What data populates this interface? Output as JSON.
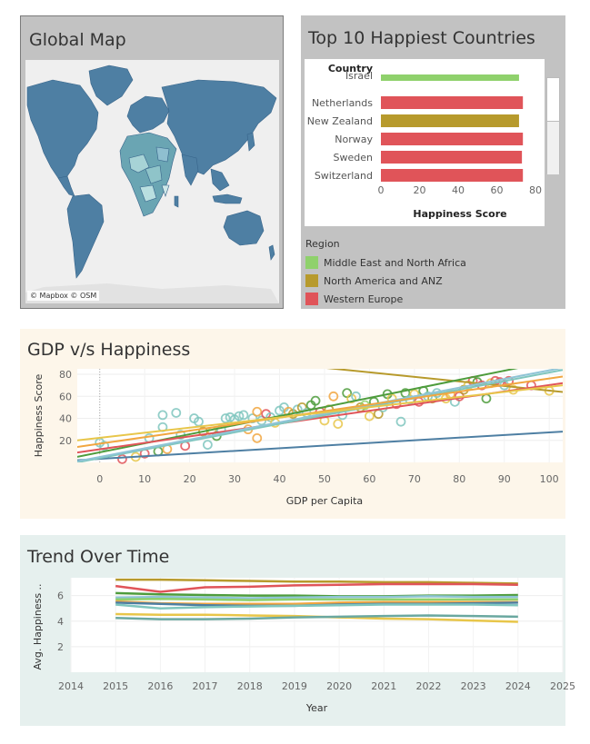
{
  "map": {
    "title": "Global Map",
    "attribution": "© Mapbox © OSM",
    "ocean_color": "#efefef",
    "land_color": "#4e7fa3"
  },
  "top10": {
    "title": "Top 10 Happiest Countries",
    "row_header": "Country",
    "xlabel": "Happiness Score",
    "legend_title": "Region",
    "legend": [
      {
        "label": "Middle East and North Africa",
        "color": "#8fd16c"
      },
      {
        "label": "North America and ANZ",
        "color": "#b79a2c"
      },
      {
        "label": "Western Europe",
        "color": "#e05459"
      }
    ]
  },
  "gdp": {
    "title": "GDP v/s Happiness"
  },
  "trend": {
    "title": "Trend Over Time"
  },
  "chart_data": [
    {
      "type": "bar",
      "title": "Top 10 Happiest Countries",
      "xlabel": "Happiness Score",
      "xlim": [
        0,
        80
      ],
      "xticks": [
        0,
        20,
        40,
        60,
        80
      ],
      "categories": [
        "Israel",
        "Netherlands",
        "New Zealand",
        "Norway",
        "Sweden",
        "Switzerland"
      ],
      "values": [
        71.5,
        73.5,
        71.5,
        73.5,
        73.0,
        73.5
      ],
      "colors": [
        "#8fd16c",
        "#e05459",
        "#b79a2c",
        "#e05459",
        "#e05459",
        "#e05459"
      ]
    },
    {
      "type": "scatter",
      "title": "GDP v/s Happiness",
      "xlabel": "GDP per Capita",
      "ylabel": "Happiness Score",
      "xlim": [
        -5,
        103
      ],
      "ylim": [
        0,
        85
      ],
      "xticks": [
        0,
        10,
        20,
        30,
        40,
        50,
        60,
        70,
        80,
        90,
        100
      ],
      "yticks": [
        20,
        40,
        60,
        80
      ],
      "points": [
        [
          0,
          18,
          "#7fc6be"
        ],
        [
          1,
          15,
          "#7fc6be"
        ],
        [
          5,
          3,
          "#e05459"
        ],
        [
          8,
          5,
          "#e8c64a"
        ],
        [
          10,
          8,
          "#e05459"
        ],
        [
          11,
          22,
          "#7fc6be"
        ],
        [
          13,
          10,
          "#4e9c3c"
        ],
        [
          14,
          43,
          "#7fc6be"
        ],
        [
          14,
          32,
          "#7fc6be"
        ],
        [
          15,
          12,
          "#f1a640"
        ],
        [
          17,
          45,
          "#7fc6be"
        ],
        [
          18,
          25,
          "#7fc6be"
        ],
        [
          19,
          15,
          "#e05459"
        ],
        [
          21,
          40,
          "#7fc6be"
        ],
        [
          22,
          37,
          "#7fc6be"
        ],
        [
          23,
          28,
          "#b79a2c"
        ],
        [
          24,
          16,
          "#7fc6be"
        ],
        [
          25,
          28,
          "#e8c64a"
        ],
        [
          26,
          24,
          "#4e9c3c"
        ],
        [
          27,
          30,
          "#7fc6be"
        ],
        [
          28,
          40,
          "#7fc6be"
        ],
        [
          29,
          41,
          "#7fc6be"
        ],
        [
          30,
          39,
          "#7fc6be"
        ],
        [
          31,
          42,
          "#7fc6be"
        ],
        [
          32,
          43,
          "#7fc6be"
        ],
        [
          33,
          30,
          "#f1a640"
        ],
        [
          34,
          40,
          "#7fc6be"
        ],
        [
          35,
          46,
          "#f1a640"
        ],
        [
          35,
          22,
          "#f1a640"
        ],
        [
          36,
          38,
          "#7fc6be"
        ],
        [
          37,
          44,
          "#e05459"
        ],
        [
          38,
          41,
          "#7fc6be"
        ],
        [
          39,
          36,
          "#e8c64a"
        ],
        [
          40,
          47,
          "#7fc6be"
        ],
        [
          41,
          50,
          "#7fc6be"
        ],
        [
          42,
          46,
          "#f1a640"
        ],
        [
          43,
          44,
          "#b79a2c"
        ],
        [
          44,
          48,
          "#7fc6be"
        ],
        [
          45,
          50,
          "#b79a2c"
        ],
        [
          46,
          45,
          "#7fc6be"
        ],
        [
          47,
          52,
          "#4e9c3c"
        ],
        [
          48,
          56,
          "#4e9c3c"
        ],
        [
          49,
          46,
          "#e05459"
        ],
        [
          50,
          38,
          "#e8c64a"
        ],
        [
          51,
          48,
          "#b79a2c"
        ],
        [
          52,
          60,
          "#f1a640"
        ],
        [
          53,
          35,
          "#e8c64a"
        ],
        [
          54,
          43,
          "#7fc6be"
        ],
        [
          55,
          63,
          "#4e9c3c"
        ],
        [
          56,
          58,
          "#e8c64a"
        ],
        [
          57,
          60,
          "#7fc6be"
        ],
        [
          58,
          50,
          "#b79a2c"
        ],
        [
          59,
          52,
          "#8fd16c"
        ],
        [
          60,
          42,
          "#e8c64a"
        ],
        [
          61,
          55,
          "#4e9c3c"
        ],
        [
          62,
          44,
          "#b79a2c"
        ],
        [
          63,
          50,
          "#7fc6be"
        ],
        [
          64,
          62,
          "#4e9c3c"
        ],
        [
          65,
          58,
          "#e8c64a"
        ],
        [
          66,
          53,
          "#e05459"
        ],
        [
          67,
          37,
          "#7fc6be"
        ],
        [
          68,
          63,
          "#4e9c3c"
        ],
        [
          69,
          57,
          "#7fc6be"
        ],
        [
          70,
          62,
          "#e8c64a"
        ],
        [
          71,
          55,
          "#e05459"
        ],
        [
          72,
          65,
          "#4e9c3c"
        ],
        [
          73,
          60,
          "#7fc6be"
        ],
        [
          74,
          58,
          "#b79a2c"
        ],
        [
          75,
          63,
          "#7fc6be"
        ],
        [
          77,
          58,
          "#e8c64a"
        ],
        [
          78,
          62,
          "#f1a640"
        ],
        [
          79,
          55,
          "#7fc6be"
        ],
        [
          80,
          60,
          "#e05459"
        ],
        [
          81,
          66,
          "#b79a2c"
        ],
        [
          82,
          70,
          "#e8c64a"
        ],
        [
          83,
          74,
          "#e05459"
        ],
        [
          84,
          73,
          "#4e9c3c"
        ],
        [
          85,
          70,
          "#e05459"
        ],
        [
          86,
          58,
          "#4e9c3c"
        ],
        [
          87,
          72,
          "#e8c64a"
        ],
        [
          88,
          74,
          "#e05459"
        ],
        [
          89,
          73,
          "#e05459"
        ],
        [
          90,
          70,
          "#7fc6be"
        ],
        [
          91,
          74,
          "#e05459"
        ],
        [
          92,
          66,
          "#e8c64a"
        ],
        [
          96,
          70,
          "#e05459"
        ],
        [
          100,
          65,
          "#e8c64a"
        ]
      ],
      "trend_lines": [
        {
          "color": "#4e7fa3",
          "x": [
            -5,
            103
          ],
          "y": [
            2,
            28
          ]
        },
        {
          "color": "#b79a2c",
          "x": [
            50,
            103
          ],
          "y": [
            86,
            64
          ]
        },
        {
          "color": "#4e9c3c",
          "x": [
            -5,
            103
          ],
          "y": [
            5,
            94
          ]
        },
        {
          "color": "#e05459",
          "x": [
            -5,
            103
          ],
          "y": [
            9,
            72
          ]
        },
        {
          "color": "#7fc6be",
          "x": [
            -5,
            103
          ],
          "y": [
            0,
            84
          ]
        },
        {
          "color": "#8fc4d6",
          "x": [
            -5,
            103
          ],
          "y": [
            1,
            86
          ]
        },
        {
          "color": "#f1a640",
          "x": [
            -5,
            103
          ],
          "y": [
            14,
            78
          ]
        },
        {
          "color": "#e8c64a",
          "x": [
            -5,
            103
          ],
          "y": [
            20,
            70
          ]
        }
      ]
    },
    {
      "type": "line",
      "title": "Trend Over Time",
      "xlabel": "Year",
      "ylabel": "Avg. Happiness ..",
      "xlim": [
        2014,
        2025
      ],
      "ylim": [
        0,
        7.4
      ],
      "xticks": [
        2014,
        2015,
        2016,
        2017,
        2018,
        2019,
        2020,
        2021,
        2022,
        2023,
        2024,
        2025
      ],
      "yticks": [
        2,
        4,
        6
      ],
      "x": [
        2015,
        2016,
        2017,
        2018,
        2019,
        2020,
        2021,
        2022,
        2023,
        2024
      ],
      "series": [
        {
          "color": "#b79a2c",
          "values": [
            7.25,
            7.25,
            7.2,
            7.15,
            7.1,
            7.1,
            7.05,
            7.05,
            7.0,
            6.95
          ]
        },
        {
          "color": "#e05459",
          "values": [
            6.75,
            6.3,
            6.65,
            6.7,
            6.8,
            6.85,
            6.9,
            6.9,
            6.9,
            6.85
          ]
        },
        {
          "color": "#4e9c3c",
          "values": [
            6.2,
            6.1,
            6.05,
            6.0,
            6.0,
            5.95,
            5.95,
            6.0,
            6.0,
            6.05
          ]
        },
        {
          "color": "#8fc4d6",
          "values": [
            5.85,
            5.9,
            5.85,
            5.8,
            5.85,
            5.9,
            5.9,
            5.95,
            5.9,
            5.9
          ]
        },
        {
          "color": "#8fd16c",
          "values": [
            5.7,
            5.75,
            5.7,
            5.65,
            5.7,
            5.7,
            5.7,
            5.7,
            5.7,
            5.7
          ]
        },
        {
          "color": "#f1a640",
          "values": [
            5.55,
            5.4,
            5.35,
            5.35,
            5.35,
            5.45,
            5.5,
            5.5,
            5.5,
            5.5
          ]
        },
        {
          "color": "#4e7fa3",
          "values": [
            5.45,
            5.35,
            5.25,
            5.2,
            5.2,
            5.3,
            5.35,
            5.35,
            5.4,
            5.45
          ]
        },
        {
          "color": "#7fc6be",
          "values": [
            5.3,
            5.0,
            5.1,
            5.15,
            5.2,
            5.25,
            5.3,
            5.3,
            5.3,
            5.25
          ]
        },
        {
          "color": "#e8c64a",
          "values": [
            4.55,
            4.5,
            4.5,
            4.45,
            4.4,
            4.3,
            4.2,
            4.15,
            4.05,
            3.95
          ]
        },
        {
          "color": "#6aa8a0",
          "values": [
            4.25,
            4.15,
            4.15,
            4.2,
            4.3,
            4.35,
            4.4,
            4.45,
            4.4,
            4.35
          ]
        }
      ]
    }
  ]
}
